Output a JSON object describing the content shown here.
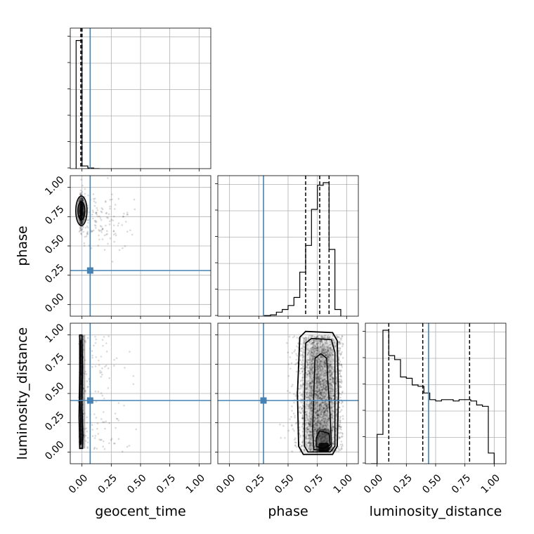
{
  "chart_data": {
    "type": "corner",
    "parameters": [
      "geocent_time",
      "phase",
      "luminosity_distance"
    ],
    "axis_labels": {
      "x": [
        "geocent_time",
        "phase",
        "luminosity_distance"
      ],
      "y": [
        "phase",
        "luminosity_distance"
      ]
    },
    "tick_values": [
      0.0,
      0.25,
      0.5,
      0.75,
      1.0
    ],
    "tick_labels": [
      "0.00",
      "0.25",
      "0.50",
      "0.75",
      "1.00"
    ],
    "axis_ranges": {
      "geocent_time": [
        -0.1,
        1.1
      ],
      "phase": [
        -0.1,
        1.1
      ],
      "luminosity_distance": [
        -0.1,
        1.1
      ]
    },
    "grid": true,
    "injection": {
      "geocent_time": 0.07,
      "phase": 0.29,
      "luminosity_distance": 0.44
    },
    "quantiles": {
      "geocent_time": [
        -0.01,
        0.0,
        0.0
      ],
      "phase": [
        0.65,
        0.77,
        0.85
      ],
      "luminosity_distance": [
        0.1,
        0.39,
        0.79
      ]
    },
    "histograms": {
      "geocent_time": {
        "bin_edges": [
          -0.05,
          0.0,
          0.05,
          0.1,
          0.15
        ],
        "counts": [
          0.96,
          0.02,
          0.005,
          0.0
        ]
      },
      "phase": {
        "bin_edges": [
          0.3,
          0.35,
          0.4,
          0.45,
          0.5,
          0.55,
          0.6,
          0.65,
          0.7,
          0.75,
          0.8,
          0.85,
          0.9,
          0.95
        ],
        "counts": [
          0.005,
          0.01,
          0.03,
          0.05,
          0.08,
          0.14,
          0.33,
          0.53,
          0.8,
          0.98,
          1.0,
          0.5,
          0.05
        ]
      },
      "luminosity_distance": {
        "bin_edges": [
          -0.05,
          0.0,
          0.05,
          0.1,
          0.15,
          0.2,
          0.25,
          0.3,
          0.35,
          0.4,
          0.45,
          0.5,
          0.55,
          0.6,
          0.65,
          0.7,
          0.75,
          0.8,
          0.85,
          0.9,
          0.95,
          1.0
        ],
        "counts": [
          0.0,
          0.22,
          1.0,
          0.81,
          0.78,
          0.65,
          0.64,
          0.59,
          0.58,
          0.53,
          0.48,
          0.47,
          0.48,
          0.48,
          0.47,
          0.48,
          0.48,
          0.47,
          0.44,
          0.43,
          0.08
        ]
      }
    }
  }
}
